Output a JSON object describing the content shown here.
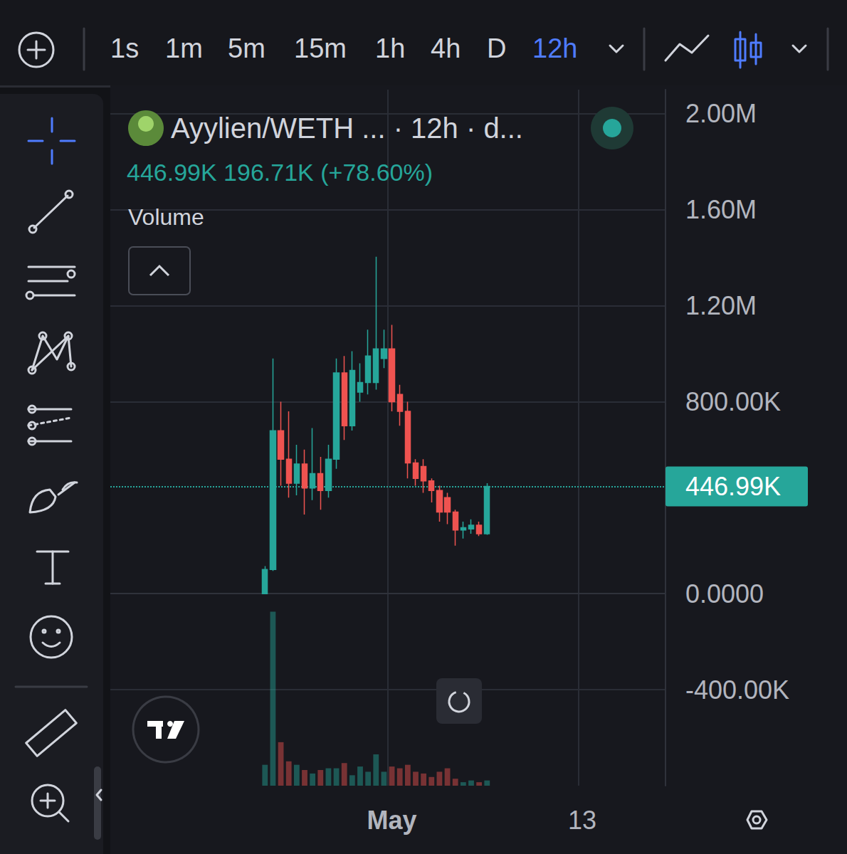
{
  "toolbar": {
    "intervals": [
      "1s",
      "1m",
      "5m",
      "15m",
      "1h",
      "4h",
      "D",
      "12h"
    ],
    "active": "12h"
  },
  "chart_data": {
    "type": "candlestick",
    "title": "Ayylien/WETH ... · 12h · d...",
    "subtitle": "446.99K 196.71K (+78.60%)",
    "categories": [
      null,
      null,
      null,
      null,
      null,
      null,
      null,
      null,
      null,
      null,
      null,
      null,
      null,
      null,
      null,
      null,
      null,
      null,
      null,
      null,
      null,
      null,
      null,
      null,
      null,
      null,
      null,
      null,
      null,
      null,
      null,
      null,
      null,
      null,
      null,
      "May",
      null,
      null,
      null,
      null,
      null,
      null,
      null,
      null,
      null,
      null,
      null,
      null,
      null,
      null,
      null,
      null,
      null,
      null,
      null,
      null,
      null,
      null,
      null,
      "13",
      null,
      null,
      null,
      null,
      null,
      null,
      null,
      null,
      null,
      null
    ],
    "series": [
      {
        "type": "candlestick",
        "open": [
          null,
          null,
          null,
          null,
          null,
          null,
          null,
          null,
          null,
          null,
          null,
          null,
          null,
          null,
          null,
          null,
          null,
          null,
          null,
          0,
          101000,
          679000,
          560000,
          460000,
          540000,
          440000,
          500000,
          430000,
          560000,
          920000,
          700000,
          840000,
          880000,
          880000,
          980000,
          1020000,
          830000,
          760000,
          545000,
          530000,
          470000,
          430000,
          400000,
          340000,
          265000,
          270000,
          285000,
          250000,
          null,
          null,
          null,
          null,
          null,
          null,
          null,
          null,
          null,
          null,
          null,
          null,
          null,
          null,
          null,
          null,
          null,
          null,
          null,
          null,
          null,
          null
        ],
        "close": [
          null,
          null,
          null,
          null,
          null,
          null,
          null,
          null,
          null,
          null,
          null,
          null,
          null,
          null,
          null,
          null,
          null,
          null,
          null,
          101000,
          679000,
          560000,
          460000,
          540000,
          440000,
          500000,
          430000,
          560000,
          920000,
          700000,
          930000,
          880000,
          990000,
          1020000,
          1020000,
          800000,
          760000,
          545000,
          480000,
          470000,
          430000,
          340000,
          340000,
          265000,
          275000,
          285000,
          250000,
          446990,
          null,
          null,
          null,
          null,
          null,
          null,
          null,
          null,
          null,
          null,
          null,
          null,
          null,
          null,
          null,
          null,
          null,
          null,
          null,
          null,
          null,
          null
        ],
        "low": [
          null,
          null,
          null,
          null,
          null,
          null,
          null,
          null,
          null,
          null,
          null,
          null,
          null,
          null,
          null,
          null,
          null,
          null,
          null,
          0,
          95000,
          450000,
          400000,
          410000,
          330000,
          390000,
          350000,
          400000,
          520000,
          640000,
          680000,
          800000,
          830000,
          850000,
          940000,
          760000,
          700000,
          480000,
          450000,
          420000,
          380000,
          300000,
          290000,
          200000,
          230000,
          250000,
          240000,
          245000,
          null,
          null,
          null,
          null,
          null,
          null,
          null,
          null,
          null,
          null,
          null,
          null,
          null,
          null,
          null,
          null,
          null,
          null,
          null,
          null,
          null,
          null
        ],
        "high": [
          null,
          null,
          null,
          null,
          null,
          null,
          null,
          null,
          null,
          null,
          null,
          null,
          null,
          null,
          null,
          null,
          null,
          null,
          null,
          115000,
          980000,
          800000,
          760000,
          620000,
          600000,
          690000,
          570000,
          620000,
          980000,
          990000,
          1010000,
          960000,
          1100000,
          1404000,
          1100000,
          1120000,
          870000,
          800000,
          560000,
          560000,
          480000,
          450000,
          420000,
          350000,
          300000,
          310000,
          300000,
          460000,
          null,
          null,
          null,
          null,
          null,
          null,
          null,
          null,
          null,
          null,
          null,
          null,
          null,
          null,
          null,
          null,
          null,
          null,
          null,
          null,
          null,
          null
        ]
      },
      {
        "name": "Volume",
        "type": "bar",
        "axis": "y2",
        "values": [
          null,
          null,
          null,
          null,
          null,
          null,
          null,
          null,
          null,
          null,
          null,
          null,
          null,
          null,
          null,
          null,
          null,
          null,
          null,
          12,
          100,
          25,
          14,
          12,
          9,
          7,
          9,
          10,
          10,
          13,
          6,
          11,
          8,
          18,
          8,
          11,
          10,
          12,
          8,
          7,
          5,
          8,
          10,
          4,
          2,
          3,
          2,
          3,
          null,
          null,
          null,
          null,
          null,
          null,
          null,
          null,
          null,
          null,
          null,
          null,
          null,
          null,
          null,
          null,
          null,
          null,
          null,
          null,
          null,
          null
        ]
      }
    ],
    "colors": [
      "#26a69a",
      "#ef5350"
    ],
    "ylim": [
      -800000,
      2100000
    ],
    "yticks": [
      {
        "value": -400000,
        "label": "-400.00K"
      },
      {
        "value": 0,
        "label": "0.0000"
      },
      {
        "value": 800000,
        "label": "800.00K"
      },
      {
        "value": 1200000,
        "label": "1.20M"
      },
      {
        "value": 1600000,
        "label": "1.60M"
      },
      {
        "value": 2000000,
        "label": "2.00M"
      }
    ],
    "y2lim": [
      0,
      400
    ],
    "grid": true,
    "annotations": [
      {
        "text": "446.99K",
        "y": 446990
      }
    ]
  }
}
